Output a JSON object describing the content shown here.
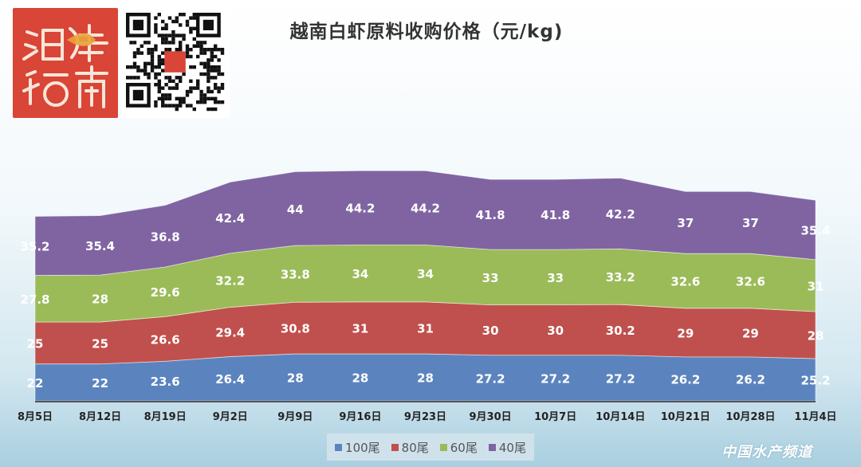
{
  "title": "越南白虾原料收购价格（元/kg)",
  "watermark": "中国水产频道",
  "logo_text": "海鲜指南",
  "chart_data": {
    "type": "area",
    "stacked": true,
    "categories": [
      "8月5日",
      "8月12日",
      "8月19日",
      "9月2日",
      "9月9日",
      "9月16日",
      "9月23日",
      "9月30日",
      "10月7日",
      "10月14日",
      "10月21日",
      "10月28日",
      "11月4日"
    ],
    "series": [
      {
        "name": "100尾",
        "color": "#5b84bf",
        "values": [
          22,
          22,
          23.6,
          26.4,
          28,
          28,
          28,
          27.2,
          27.2,
          27.2,
          26.2,
          26.2,
          25.2
        ]
      },
      {
        "name": "80尾",
        "color": "#c0504d",
        "values": [
          25,
          25,
          26.6,
          29.4,
          30.8,
          31,
          31,
          30,
          30,
          30.2,
          29,
          29,
          28
        ]
      },
      {
        "name": "60尾",
        "color": "#9bbb59",
        "values": [
          27.8,
          28,
          29.6,
          32.2,
          33.8,
          34,
          34,
          33,
          33,
          33.2,
          32.6,
          32.6,
          31
        ]
      },
      {
        "name": "40尾",
        "color": "#8064a2",
        "values": [
          35.2,
          35.4,
          36.8,
          42.4,
          44,
          44.2,
          44.2,
          41.8,
          41.8,
          42.2,
          37,
          37,
          35.4
        ]
      }
    ],
    "legend_position": "bottom",
    "grid": false
  }
}
